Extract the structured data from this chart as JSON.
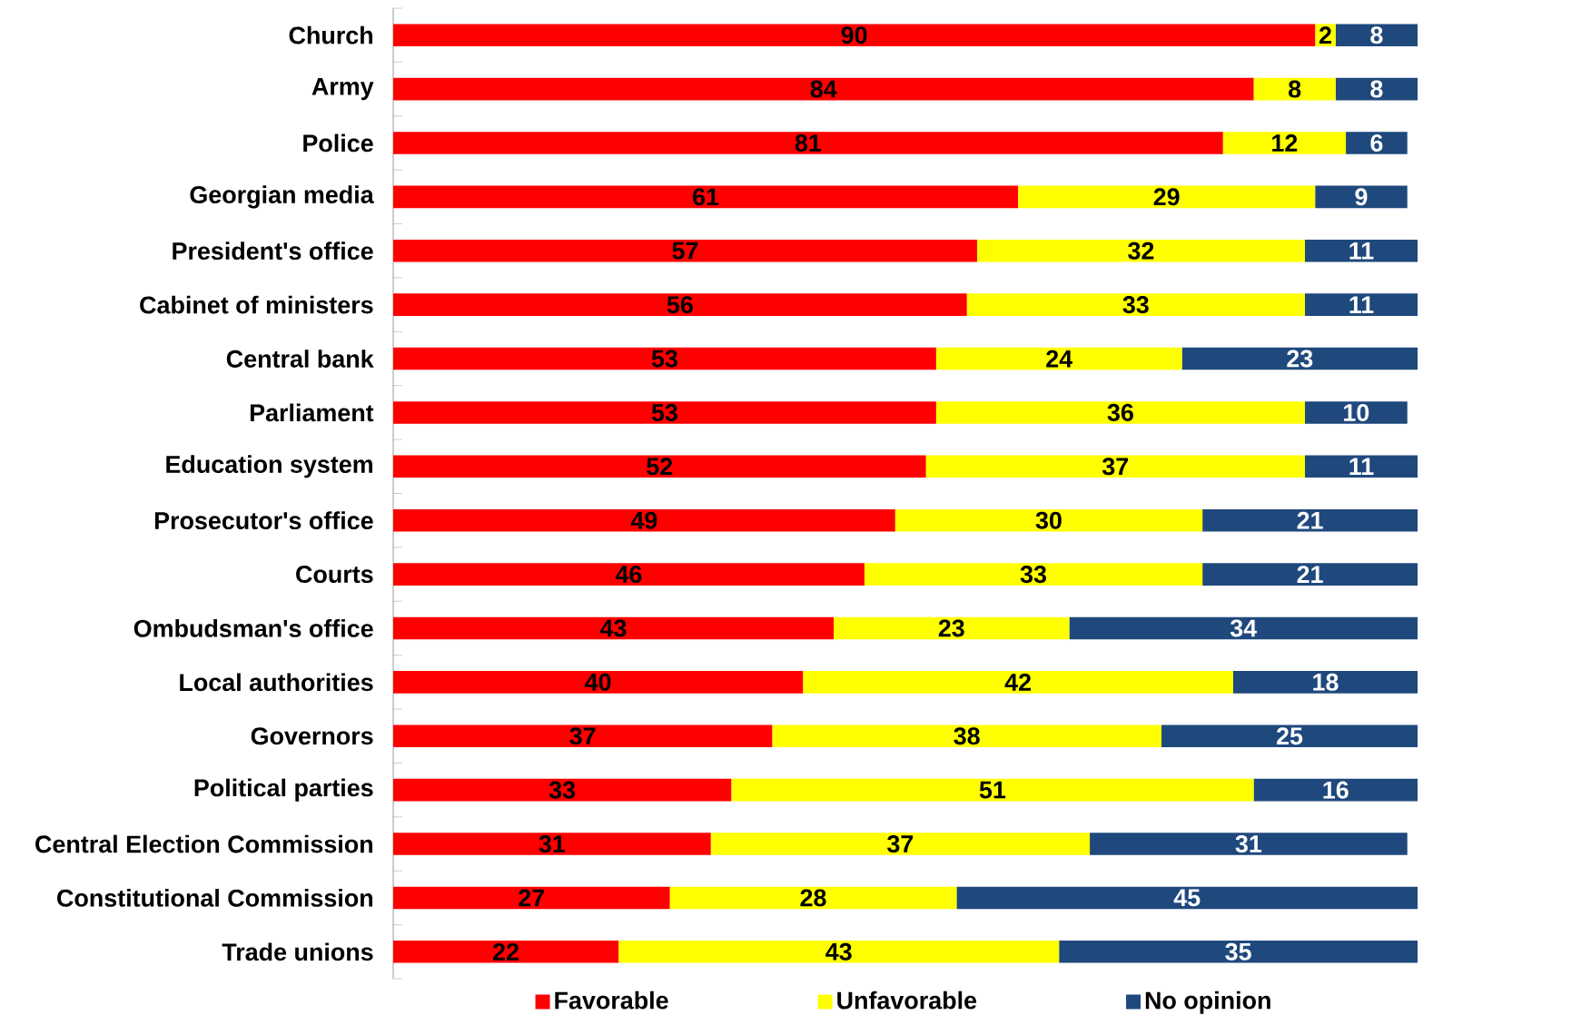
{
  "chart_data": {
    "type": "bar",
    "orientation": "horizontal",
    "stacked": true,
    "data_labels": true,
    "legend": "bottom",
    "xlim": [
      0,
      100
    ],
    "tick_labels": "y",
    "categories": [
      "Church",
      "Army",
      "Police",
      "Georgian media",
      "President's office",
      "Cabinet of ministers",
      "Central bank",
      "Parliament",
      "Education system",
      "Prosecutor's office",
      "Courts",
      "Ombudsman's office",
      "Local authorities",
      "Governors",
      "Political parties",
      "Central Election Commission",
      "Constitutional Commission",
      "Trade unions"
    ],
    "series": [
      {
        "name": "Favorable",
        "color": "#ff0000",
        "values": [
          90,
          84,
          81,
          61,
          57,
          56,
          53,
          53,
          52,
          49,
          46,
          43,
          40,
          37,
          33,
          31,
          27,
          22
        ]
      },
      {
        "name": "Unfavorable",
        "color": "#ffff00",
        "values": [
          2,
          8,
          12,
          29,
          32,
          33,
          24,
          36,
          37,
          30,
          33,
          23,
          42,
          38,
          51,
          37,
          28,
          43
        ]
      },
      {
        "name": "No opinion",
        "color": "#1f497d",
        "values": [
          8,
          8,
          6,
          9,
          11,
          11,
          23,
          10,
          11,
          21,
          21,
          34,
          18,
          25,
          16,
          31,
          45,
          35
        ]
      }
    ]
  }
}
